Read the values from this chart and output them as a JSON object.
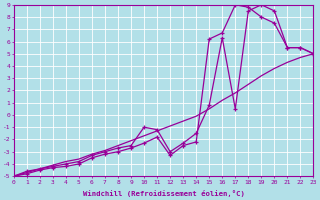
{
  "xlabel": "Windchill (Refroidissement éolien,°C)",
  "background_color": "#b2e0e8",
  "grid_color": "#ffffff",
  "line_color": "#990099",
  "xmin": 0,
  "xmax": 23,
  "ymin": -5,
  "ymax": 9,
  "line1_x": [
    0,
    1,
    2,
    3,
    4,
    5,
    6,
    7,
    8,
    9,
    10,
    11,
    12,
    13,
    14,
    15,
    16,
    17,
    18,
    19,
    20,
    21,
    22,
    23
  ],
  "line1_y": [
    -5.0,
    -4.8,
    -4.5,
    -4.3,
    -4.2,
    -4.0,
    -3.5,
    -3.2,
    -3.0,
    -2.7,
    -2.3,
    -1.8,
    -3.3,
    -2.5,
    -2.2,
    6.2,
    6.7,
    9.0,
    8.8,
    8.0,
    7.5,
    5.5,
    5.5,
    5.0
  ],
  "line2_x": [
    0,
    1,
    2,
    3,
    4,
    5,
    6,
    7,
    8,
    9,
    10,
    11,
    12,
    13,
    14,
    15,
    16,
    17,
    18,
    19,
    20,
    21,
    22,
    23
  ],
  "line2_y": [
    -5.0,
    -4.6,
    -4.4,
    -4.2,
    -4.0,
    -3.8,
    -3.3,
    -3.0,
    -2.7,
    -2.5,
    -1.0,
    -1.2,
    -3.0,
    -2.3,
    -1.5,
    0.8,
    6.3,
    0.5,
    8.5,
    9.0,
    8.5,
    5.5,
    5.5,
    5.0
  ],
  "line3_x": [
    0,
    1,
    2,
    3,
    4,
    5,
    6,
    7,
    8,
    9,
    10,
    11,
    12,
    13,
    14,
    15,
    16,
    17,
    18,
    19,
    20,
    21,
    22,
    23
  ],
  "line3_y": [
    -5.0,
    -4.7,
    -4.4,
    -4.1,
    -3.8,
    -3.6,
    -3.2,
    -2.9,
    -2.5,
    -2.1,
    -1.7,
    -1.3,
    -0.9,
    -0.5,
    -0.1,
    0.5,
    1.2,
    1.8,
    2.5,
    3.2,
    3.8,
    4.3,
    4.7,
    5.0
  ]
}
